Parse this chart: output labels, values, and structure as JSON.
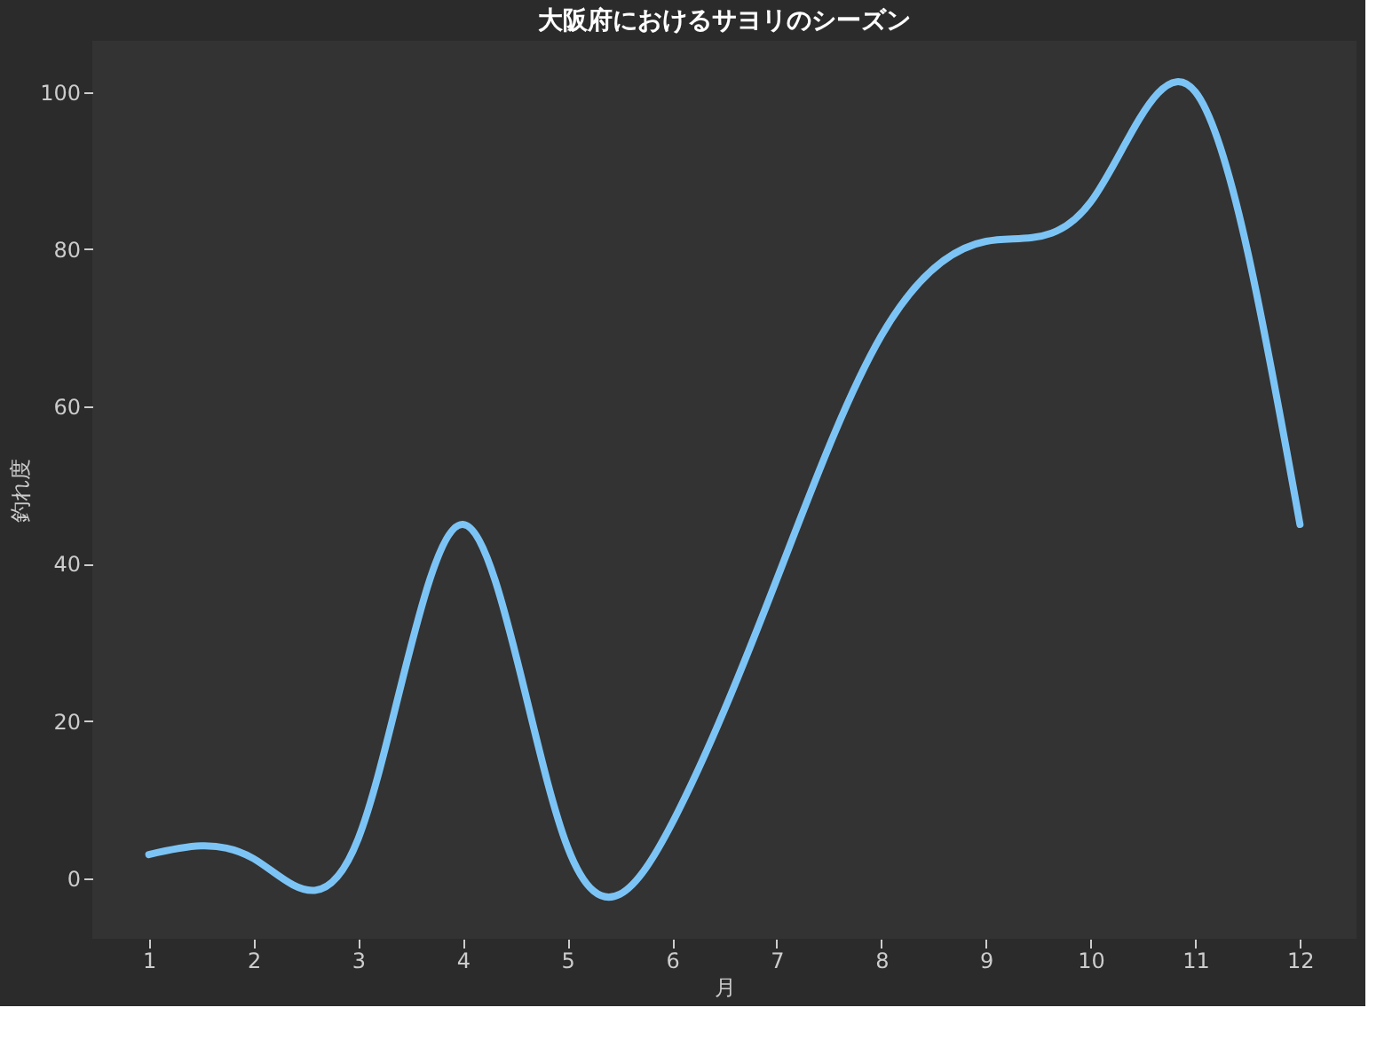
{
  "chart_data": {
    "type": "line",
    "title": "大阪府におけるサヨリのシーズン",
    "xlabel": "月",
    "ylabel": "釣れ度",
    "x": [
      1,
      2,
      3,
      4,
      5,
      6,
      7,
      8,
      9,
      10,
      11,
      12
    ],
    "series": [
      {
        "color": "#7cc4f5",
        "values": [
          3,
          2.5,
          5,
          45,
          4,
          7,
          38,
          69,
          81,
          86,
          100,
          45
        ]
      }
    ],
    "xlim": [
      0.46,
      12.54
    ],
    "ylim": [
      -7.7,
      106.5
    ],
    "xticks": [
      1,
      2,
      3,
      4,
      5,
      6,
      7,
      8,
      9,
      10,
      11,
      12
    ],
    "yticks": [
      0,
      20,
      40,
      60,
      80,
      100
    ],
    "grid": false,
    "legend": false,
    "marker": "none",
    "line_style": "solid"
  }
}
